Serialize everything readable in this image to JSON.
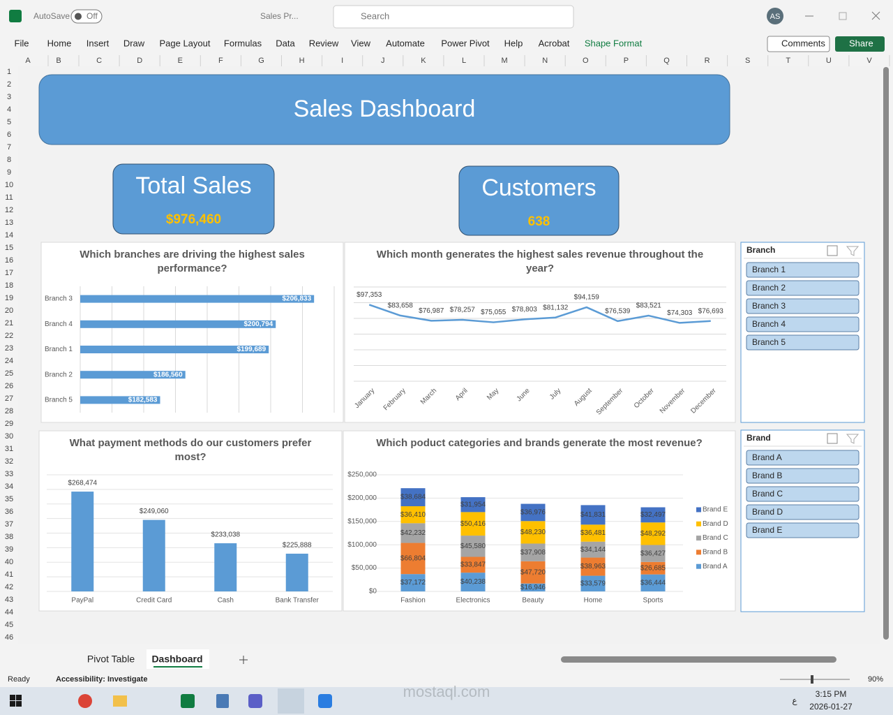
{
  "window": {
    "autosave": "AutoSave",
    "autosave_state": "Off",
    "file_name": "Sales Pr...",
    "search": "Search",
    "user_initials": "AS"
  },
  "ribbon": {
    "tabs": [
      "File",
      "Home",
      "Insert",
      "Draw",
      "Page Layout",
      "Formulas",
      "Data",
      "Review",
      "View",
      "Automate",
      "Power Pivot",
      "Help",
      "Acrobat",
      "Shape Format"
    ],
    "comments": "Comments",
    "share": "Share"
  },
  "sheet": {
    "columns": [
      "A",
      "B",
      "C",
      "D",
      "E",
      "F",
      "G",
      "H",
      "I",
      "J",
      "K",
      "L",
      "M",
      "N",
      "O",
      "P",
      "Q",
      "R",
      "S",
      "T",
      "U",
      "V"
    ],
    "rows": [
      1,
      2,
      3,
      4,
      5,
      6,
      7,
      8,
      9,
      10,
      11,
      12,
      13,
      14,
      15,
      16,
      17,
      18,
      19,
      20,
      21,
      22,
      23,
      24,
      25,
      26,
      27,
      28,
      29,
      30,
      31,
      32,
      33,
      34,
      35,
      36,
      37,
      38,
      39,
      40,
      41,
      42,
      43,
      44,
      45,
      46
    ]
  },
  "dashboard": {
    "title": "Sales Dashboard",
    "kpis": [
      {
        "label": "Total Sales",
        "value": "$976,460"
      },
      {
        "label": "Customers",
        "value": 638
      }
    ]
  },
  "chart_data": [
    {
      "type": "hbar",
      "title": "Which branches are driving the highest sales performance?",
      "categories": [
        "Branch 3",
        "Branch 4",
        "Branch 1",
        "Branch 2",
        "Branch 5"
      ],
      "values": [
        206833,
        200794,
        199689,
        186560,
        182583
      ],
      "value_labels": [
        "$206,833",
        "$200,794",
        "$199,689",
        "$186,560",
        "$182,583"
      ],
      "color": "#5b9bd5",
      "xlim": [
        170000,
        210000
      ],
      "xticks": [
        170000,
        175000,
        180000,
        185000,
        190000,
        195000,
        200000,
        205000,
        210000
      ],
      "grid": true
    },
    {
      "type": "line",
      "title": "Which month generates the highest sales revenue throughout the year?",
      "categories": [
        "January",
        "February",
        "March",
        "April",
        "May",
        "June",
        "July",
        "August",
        "September",
        "October",
        "November",
        "December"
      ],
      "values": [
        97353,
        83658,
        76987,
        78257,
        75055,
        78803,
        81132,
        94159,
        76539,
        83521,
        74303,
        76693
      ],
      "value_labels": [
        "$97,353",
        "$83,658",
        "$76,987",
        "$78,257",
        "$75,055",
        "$78,803",
        "$81,132",
        "$94,159",
        "$76,539",
        "$83,521",
        "$74,303",
        "$76,693"
      ],
      "color": "#5b9bd5",
      "ylim": [
        0,
        120000
      ],
      "yticks": [
        0,
        20000,
        40000,
        60000,
        80000,
        100000,
        120000
      ],
      "grid": true
    },
    {
      "type": "bar",
      "title": "What payment methods do our customers prefer most?",
      "categories": [
        "PayPal",
        "Credit Card",
        "Cash",
        "Bank Transfer"
      ],
      "values": [
        268474,
        249060,
        233038,
        225888
      ],
      "value_labels": [
        "$268,474",
        "$249,060",
        "$233,038",
        "$225,888"
      ],
      "color": "#5b9bd5",
      "ylim": [
        200000,
        280000
      ],
      "yticks": [
        200000,
        210000,
        220000,
        230000,
        240000,
        250000,
        260000,
        270000,
        280000
      ],
      "grid": true
    },
    {
      "type": "stacked_bar",
      "title": "Which poduct categories and brands generate the most revenue?",
      "categories": [
        "Fashion",
        "Electronics",
        "Beauty",
        "Home",
        "Sports"
      ],
      "series": [
        {
          "name": "Brand A",
          "color": "#5b9bd5",
          "values": [
            37172,
            40238,
            16946,
            33579,
            36444
          ],
          "value_labels": [
            "$37,172",
            "$40,238",
            "$16,946",
            "$33,579",
            "$36,444"
          ]
        },
        {
          "name": "Brand B",
          "color": "#ed7d31",
          "values": [
            66804,
            33847,
            47720,
            38963,
            26685
          ],
          "value_labels": [
            "$66,804",
            "$33,847",
            "$47,720",
            "$38,963",
            "$26,685"
          ]
        },
        {
          "name": "Brand C",
          "color": "#a5a5a5",
          "values": [
            42232,
            45580,
            37908,
            34144,
            36427
          ],
          "value_labels": [
            "$42,232",
            "$45,580",
            "$37,908",
            "$34,144",
            "$36,427"
          ]
        },
        {
          "name": "Brand D",
          "color": "#ffc000",
          "values": [
            36410,
            50416,
            48230,
            36481,
            48292
          ],
          "value_labels": [
            "$36,410",
            "$50,416",
            "$48,230",
            "$36,481",
            "$48,292"
          ]
        },
        {
          "name": "Brand E",
          "color": "#4472c4",
          "values": [
            38684,
            31954,
            36976,
            41831,
            32497
          ],
          "value_labels": [
            "$38,684",
            "$31,954",
            "$36,976",
            "$41,831",
            "$32,497"
          ]
        }
      ],
      "ylim": [
        0,
        250000
      ],
      "yticks": [
        {
          "value": 0,
          "label": "$0"
        },
        {
          "value": 50000,
          "label": "$50,000"
        },
        {
          "value": 100000,
          "label": "$100,000"
        },
        {
          "value": 150000,
          "label": "$150,000"
        },
        {
          "value": 200000,
          "label": "$200,000"
        },
        {
          "value": 250000,
          "label": "$250,000"
        }
      ],
      "grid": true,
      "legend": "right"
    }
  ],
  "slicers": [
    {
      "title": "Branch",
      "items": [
        "Branch 1",
        "Branch 2",
        "Branch 3",
        "Branch 4",
        "Branch 5"
      ]
    },
    {
      "title": "Brand",
      "items": [
        "Brand A",
        "Brand B",
        "Brand C",
        "Brand D",
        "Brand E"
      ]
    }
  ],
  "sheet_tabs": [
    "Pivot Table",
    "Dashboard"
  ],
  "status": {
    "mode": "Ready",
    "accessibility": "Accessibility: Investigate",
    "zoom": "90%"
  },
  "taskbar": {
    "language": "ع",
    "time": "3:15 PM",
    "date": "2026-01-27"
  },
  "watermark": "mostaql.com"
}
